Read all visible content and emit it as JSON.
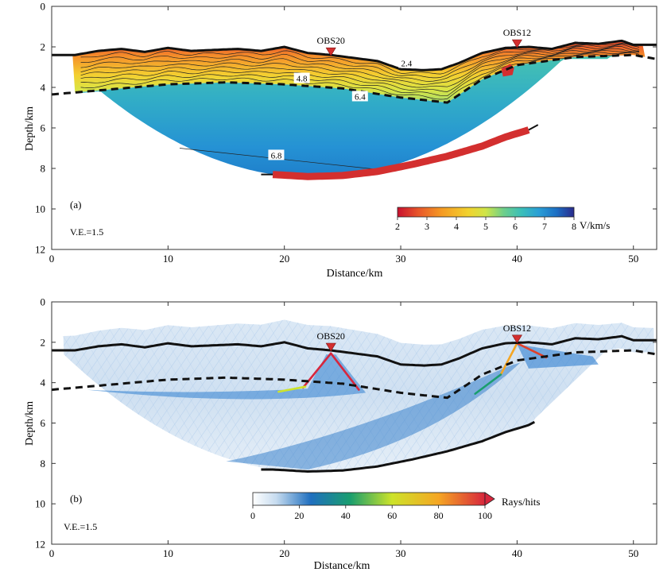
{
  "chart_data": [
    {
      "id": "a",
      "type": "heatmap",
      "panel_label": "(a)",
      "xlabel": "Distance/km",
      "ylabel": "Depth/km",
      "xlim": [
        0,
        52
      ],
      "ylim": [
        12,
        0
      ],
      "xticks": [
        0,
        10,
        20,
        30,
        40,
        50
      ],
      "yticks": [
        0,
        2,
        4,
        6,
        8,
        10,
        12
      ],
      "ve_label": "V.E.=1.5",
      "stations": [
        {
          "name": "OBS20",
          "x": 24.0,
          "depth": 2.4
        },
        {
          "name": "OBS12",
          "x": 40.0,
          "depth": 2.0
        }
      ],
      "seafloor": {
        "x": [
          0,
          2,
          4,
          6,
          8,
          10,
          12,
          14,
          16,
          18,
          20,
          22,
          24,
          26,
          28,
          30,
          32,
          33.5,
          35,
          37,
          39,
          41,
          43,
          45,
          47,
          49,
          50,
          52
        ],
        "depth": [
          2.4,
          2.4,
          2.2,
          2.1,
          2.25,
          2.05,
          2.2,
          2.15,
          2.1,
          2.2,
          2.0,
          2.3,
          2.4,
          2.55,
          2.7,
          3.1,
          3.15,
          3.1,
          2.8,
          2.3,
          2.05,
          2.0,
          2.1,
          1.8,
          1.85,
          1.7,
          1.9,
          1.9
        ]
      },
      "basement": {
        "x": [
          0,
          5,
          10,
          15,
          20,
          25,
          30,
          34,
          37,
          40,
          45,
          50,
          52
        ],
        "depth": [
          4.35,
          4.1,
          3.85,
          3.75,
          3.85,
          4.05,
          4.5,
          4.75,
          3.6,
          2.9,
          2.5,
          2.4,
          2.6
        ]
      },
      "moho": {
        "x": [
          19,
          22,
          25,
          28,
          31,
          34,
          37,
          39,
          41,
          42
        ],
        "depth": [
          8.3,
          8.4,
          8.35,
          8.15,
          7.8,
          7.4,
          6.9,
          6.45,
          6.1,
          5.8
        ]
      },
      "contour_labels": [
        {
          "text": "2.4",
          "x": 30.5,
          "depth": 2.8
        },
        {
          "text": "4.8",
          "x": 21.5,
          "depth": 3.55
        },
        {
          "text": "6.4",
          "x": 26.5,
          "depth": 4.45
        },
        {
          "text": "6.8",
          "x": 19.3,
          "depth": 7.35
        }
      ],
      "colorbar": {
        "label": "V/km/s",
        "ticks": [
          "2",
          "3",
          "4",
          "5",
          "6",
          "7",
          "8"
        ],
        "range": [
          2,
          8
        ]
      }
    },
    {
      "id": "b",
      "type": "heatmap",
      "panel_label": "(b)",
      "xlabel": "Distance/km",
      "ylabel": "Depth/km",
      "xlim": [
        0,
        52
      ],
      "ylim": [
        12,
        0
      ],
      "xticks": [
        0,
        10,
        20,
        30,
        40,
        50
      ],
      "yticks": [
        0,
        2,
        4,
        6,
        8,
        10,
        12
      ],
      "ve_label": "V.E.=1.5",
      "stations": [
        {
          "name": "OBS20",
          "x": 24.0,
          "depth": 2.4
        },
        {
          "name": "OBS12",
          "x": 40.0,
          "depth": 2.0
        }
      ],
      "colorbar": {
        "label": "Rays/hits",
        "ticks": [
          "0",
          "20",
          "40",
          "60",
          "80",
          "100"
        ],
        "range": [
          0,
          100
        ]
      }
    }
  ],
  "colors": {
    "velocity_scale": [
      "#c8102e",
      "#e8572a",
      "#f59a23",
      "#f2d22e",
      "#e8ea4a",
      "#7fd07a",
      "#3bbfb8",
      "#2a9fd6",
      "#1c6fc4",
      "#2a2a8c"
    ],
    "ray_scale": [
      "#ffffff",
      "#c7dcef",
      "#1f6fbf",
      "#1a9e6e",
      "#cde32a",
      "#f5a623",
      "#d7263d"
    ],
    "reflector": "#d32f2f",
    "interface": "#111111"
  }
}
